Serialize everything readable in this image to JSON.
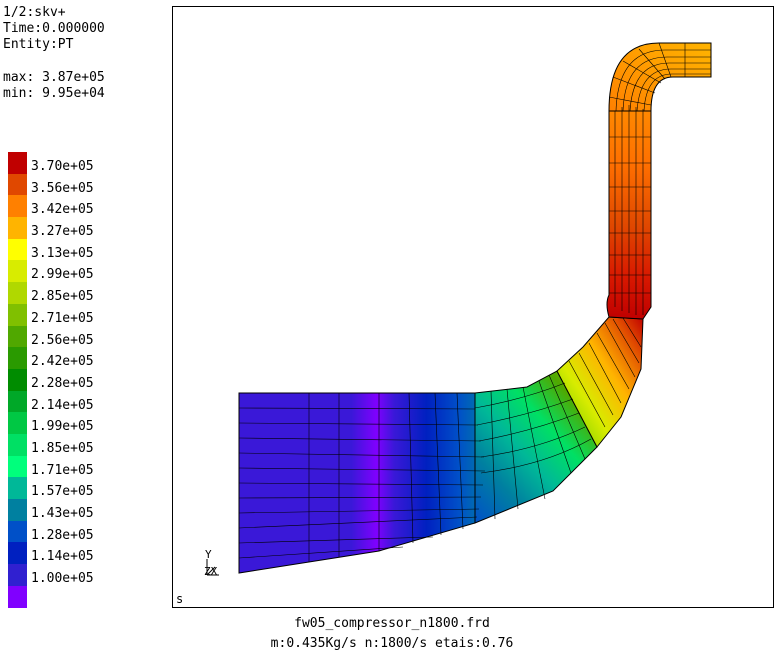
{
  "header": {
    "dataset": "1/2:skv+",
    "time": "Time:0.000000",
    "entity": "Entity:PT",
    "max": "max: 3.87e+05",
    "min": "min: 9.95e+04"
  },
  "legend": [
    {
      "label": "3.70e+05",
      "color": "#c00000"
    },
    {
      "label": "3.56e+05",
      "color": "#e04800"
    },
    {
      "label": "3.42e+05",
      "color": "#ff8000"
    },
    {
      "label": "3.27e+05",
      "color": "#ffb400"
    },
    {
      "label": "3.13e+05",
      "color": "#ffff00"
    },
    {
      "label": "2.99e+05",
      "color": "#d8ec00"
    },
    {
      "label": "2.85e+05",
      "color": "#b0d800"
    },
    {
      "label": "2.71e+05",
      "color": "#80c000"
    },
    {
      "label": "2.56e+05",
      "color": "#50a800"
    },
    {
      "label": "2.42e+05",
      "color": "#2a9a00"
    },
    {
      "label": "2.28e+05",
      "color": "#008c00"
    },
    {
      "label": "2.14e+05",
      "color": "#00a828"
    },
    {
      "label": "1.99e+05",
      "color": "#00c844"
    },
    {
      "label": "1.85e+05",
      "color": "#00e064"
    },
    {
      "label": "1.71e+05",
      "color": "#00ff7c"
    },
    {
      "label": "1.57e+05",
      "color": "#00b898"
    },
    {
      "label": "1.43e+05",
      "color": "#0080a0"
    },
    {
      "label": "1.28e+05",
      "color": "#0050c8"
    },
    {
      "label": "1.14e+05",
      "color": "#0020c0"
    },
    {
      "label": "1.00e+05",
      "color": "#3020d0"
    },
    {
      "label": "",
      "color": "#8000ff"
    }
  ],
  "viewport": {
    "corner_label": "s",
    "axis_y": "Y",
    "axis_zx": "ZX"
  },
  "footer": {
    "file": "fw05_compressor_n1800.frd",
    "info": "m:0.435Kg/s n:1800/s etais:0.76"
  }
}
